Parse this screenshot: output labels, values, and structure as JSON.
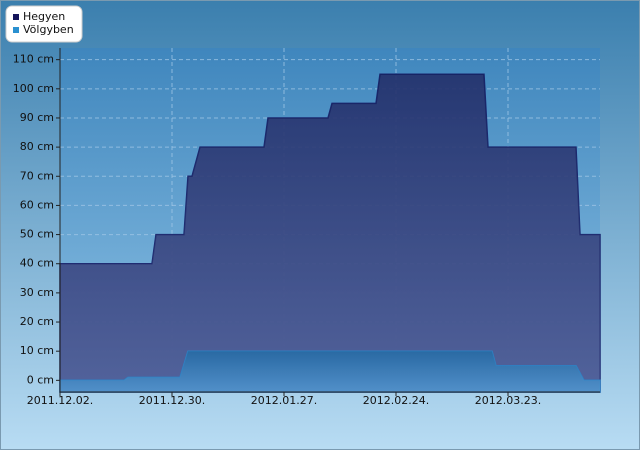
{
  "chart_data": {
    "type": "area",
    "series": [
      {
        "name": "Hegyen",
        "color": "#2a3a80",
        "legend_color": "#14145a",
        "x": [
          "2011.12.02.",
          "2011.12.25.",
          "2011.12.26.",
          "2012.01.02.",
          "2012.01.03.",
          "2012.01.04.",
          "2012.01.06.",
          "2012.01.22.",
          "2012.01.23.",
          "2012.02.07.",
          "2012.02.08.",
          "2012.02.19.",
          "2012.02.20.",
          "2012.03.17.",
          "2012.03.18.",
          "2012.04.09.",
          "2012.04.10.",
          "2012.04.15."
        ],
        "values": [
          40,
          40,
          50,
          50,
          70,
          70,
          80,
          80,
          90,
          90,
          95,
          95,
          105,
          105,
          80,
          80,
          50,
          50
        ]
      },
      {
        "name": "Völgyben",
        "color": "#2f80c4",
        "legend_color": "#2a90d0",
        "x": [
          "2011.12.02.",
          "2011.12.18.",
          "2011.12.19.",
          "2012.01.01.",
          "2012.01.03.",
          "2012.03.19.",
          "2012.03.20.",
          "2012.04.09.",
          "2012.04.11.",
          "2012.04.15."
        ],
        "values": [
          0,
          0,
          1,
          1,
          10,
          10,
          5,
          5,
          0,
          0
        ]
      }
    ],
    "xlim": [
      "2011.12.02.",
      "2012.04.15."
    ],
    "xticks": [
      "2011.12.02.",
      "2011.12.30.",
      "2012.01.27.",
      "2012.02.24.",
      "2012.03.23."
    ],
    "ylim": [
      -4,
      114
    ],
    "yticks": [
      {
        "value": 0,
        "label": "0 cm"
      },
      {
        "value": 10,
        "label": "10 cm"
      },
      {
        "value": 20,
        "label": "20 cm"
      },
      {
        "value": 30,
        "label": "30 cm"
      },
      {
        "value": 40,
        "label": "40 cm"
      },
      {
        "value": 50,
        "label": "50 cm"
      },
      {
        "value": 60,
        "label": "60 cm"
      },
      {
        "value": 70,
        "label": "70 cm"
      },
      {
        "value": 80,
        "label": "80 cm"
      },
      {
        "value": 90,
        "label": "90 cm"
      },
      {
        "value": 100,
        "label": "100 cm"
      },
      {
        "value": 110,
        "label": "110 cm"
      }
    ],
    "grid": true,
    "legend": "top-left"
  }
}
